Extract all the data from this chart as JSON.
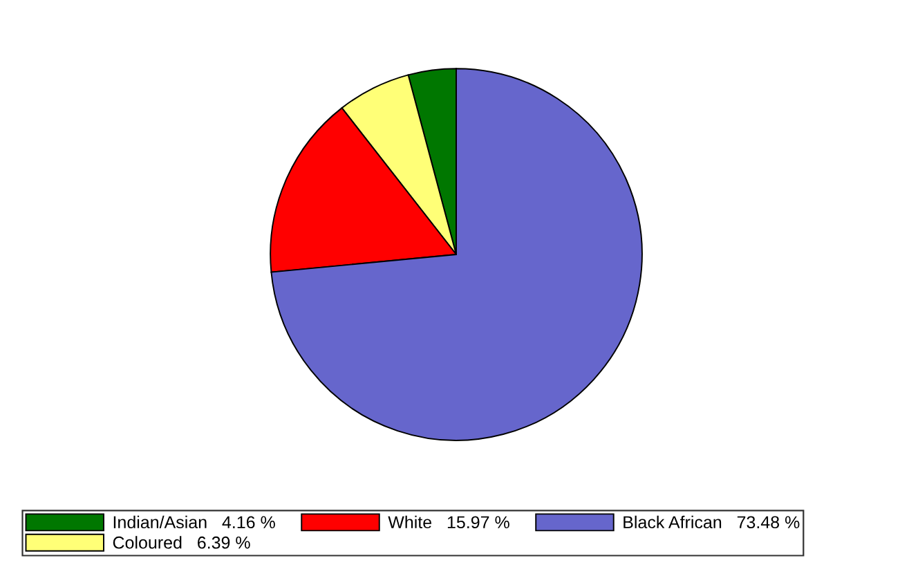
{
  "chart_data": {
    "type": "pie",
    "categories": [
      "Indian/Asian",
      "Coloured",
      "White",
      "Black African"
    ],
    "values": [
      4.16,
      6.39,
      15.97,
      73.48
    ],
    "value_labels": [
      "4.16 %",
      "6.39 %",
      "15.97 %",
      "73.48 %"
    ],
    "colors": [
      "#007700",
      "#ffff77",
      "#ff0000",
      "#6666cc"
    ],
    "legend": "bottom"
  }
}
